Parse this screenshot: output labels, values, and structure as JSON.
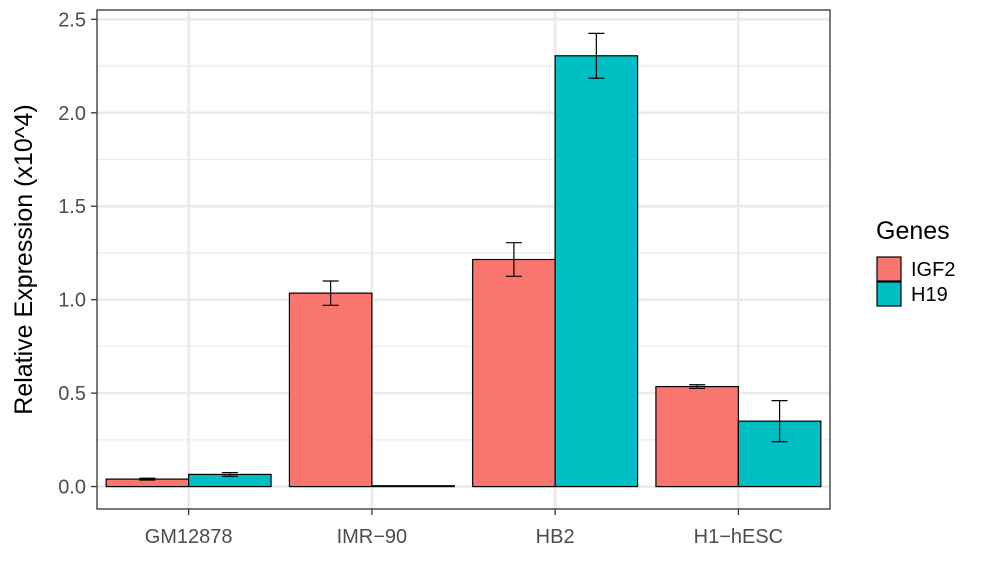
{
  "chart_data": {
    "type": "bar",
    "categories": [
      "GM12878",
      "IMR−90",
      "HB2",
      "H1−hESC"
    ],
    "series": [
      {
        "name": "IGF2",
        "color": "#F8766D",
        "values": [
          0.04,
          1.035,
          1.215,
          0.535
        ],
        "error": [
          0.005,
          0.065,
          0.09,
          0.01
        ]
      },
      {
        "name": "H19",
        "color": "#00BFC4",
        "values": [
          0.065,
          0.002,
          2.305,
          0.35
        ],
        "error": [
          0.01,
          0.0,
          0.12,
          0.11
        ]
      }
    ],
    "xlabel": "",
    "ylabel": "Relative Expression (x10^4)",
    "ylim": [
      -0.12,
      2.55
    ],
    "yticks": [
      "0.0",
      "0.5",
      "1.0",
      "1.5",
      "2.0",
      "2.5"
    ],
    "legend": {
      "title": "Genes",
      "position": "right"
    },
    "grid": true
  }
}
